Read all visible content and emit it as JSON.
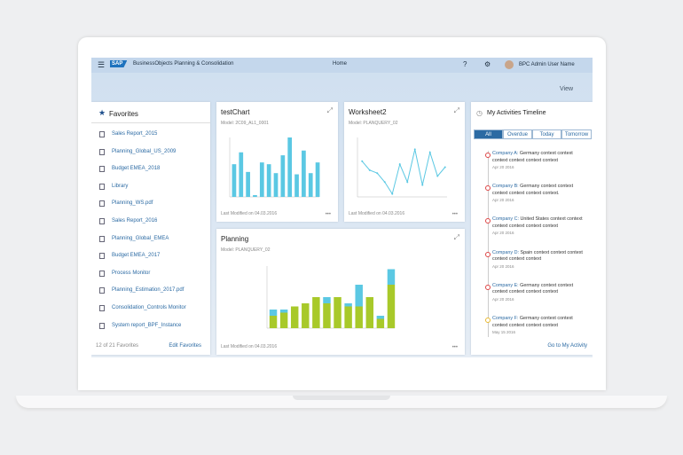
{
  "header": {
    "logo": "SAP",
    "product": "BusinessObjects Planning & Consolidation",
    "nav": "Home",
    "user": "BPC Admin User Name",
    "view": "View"
  },
  "favorites": {
    "title": "Favorites",
    "items": [
      "Sales Report_2015",
      "Planning_Global_US_2009",
      "Budget EMEA_2018",
      "Library",
      "Planning_WS.pdf",
      "Sales Report_2016",
      "Planning_Global_EMEA",
      "Budget EMEA_2017",
      "Process Monitor",
      "Planning_Estimation_2017.pdf",
      "Consolidation_Controls Monitor",
      "System report_BPF_Instance"
    ],
    "count": "12 of 21 Favorites",
    "edit": "Edit Favorites"
  },
  "charts": [
    {
      "type": "bar",
      "title": "testChart",
      "model": "Model: 2C09_AL1_0001",
      "modified": "Last Modified on 04.03.2016",
      "color": "#5bc8e3",
      "ylim": [
        0,
        100
      ],
      "values": [
        55,
        75,
        42,
        3,
        58,
        55,
        40,
        70,
        100,
        38,
        78,
        40,
        58
      ]
    },
    {
      "type": "line",
      "title": "Worksheet2",
      "model": "Model: PLANQUERY_02",
      "modified": "Last Modified on 04.03.2016",
      "color": "#5bc8e3",
      "ylim": [
        0,
        100
      ],
      "values": [
        60,
        45,
        40,
        25,
        5,
        55,
        25,
        80,
        20,
        75,
        35,
        50
      ]
    },
    {
      "type": "stacked",
      "title": "Planning",
      "model": "Model: PLANQUERY_02",
      "modified": "Last Modified on 04.03.2016",
      "ylim": [
        0,
        100
      ],
      "series": [
        {
          "color": "#a8c92a",
          "values": [
            20,
            25,
            35,
            40,
            50,
            40,
            50,
            35,
            35,
            50,
            15,
            70
          ]
        },
        {
          "color": "#5bc8e3",
          "values": [
            10,
            5,
            0,
            0,
            0,
            10,
            0,
            5,
            35,
            0,
            5,
            25
          ]
        }
      ]
    }
  ],
  "activities": {
    "title": "My Activities Timeline",
    "tabs": [
      "All",
      "Overdue",
      "Today",
      "Tomorrow"
    ],
    "items": [
      {
        "name": "Company A:",
        "text": "Germany context context context context context context",
        "date": "Apr 20 2016"
      },
      {
        "name": "Company B:",
        "text": "Germany context context context context context context.",
        "date": "Apr 20 2016"
      },
      {
        "name": "Company C:",
        "text": "United States context context context context context context",
        "date": "Apr 20 2016"
      },
      {
        "name": "Company D:",
        "text": "Spain context context context context context context",
        "date": "Apr 20 2016"
      },
      {
        "name": "Company E:",
        "text": "Germany context context context context context context",
        "date": "Apr 20 2016"
      },
      {
        "name": "Company F:",
        "text": "Germany context context context context context context",
        "date": "May 15 2016"
      }
    ],
    "link": "Go to My Activity"
  }
}
